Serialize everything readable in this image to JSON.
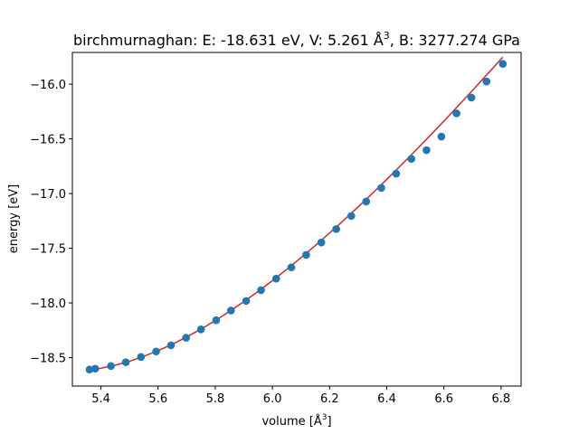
{
  "chart_data": {
    "type": "scatter",
    "title_main": "birchmurnaghan: E: -18.631 eV, V: 5.261 Å",
    "title_sup1": "3",
    "title_mid": ", B: 3277.274 GPa",
    "xlabel_main": "volume [Å",
    "xlabel_sup": "3",
    "xlabel_end": "]",
    "ylabel": "energy [eV]",
    "xlim": [
      5.3,
      6.87
    ],
    "ylim": [
      -18.76,
      -15.71
    ],
    "x_ticks": [
      5.4,
      5.6,
      5.8,
      6.0,
      6.2,
      6.4,
      6.6,
      6.8
    ],
    "x_tick_labels": [
      "5.4",
      "5.6",
      "5.8",
      "6.0",
      "6.2",
      "6.4",
      "6.6",
      "6.8"
    ],
    "y_ticks": [
      -18.5,
      -18.0,
      -17.5,
      -17.0,
      -16.5,
      -16.0
    ],
    "y_tick_labels": [
      "−18.5",
      "−18.0",
      "−17.5",
      "−17.0",
      "−16.5",
      "−16.0"
    ],
    "grid": false,
    "series": [
      {
        "kind": "points",
        "color": "#1f77b4",
        "x": [
          5.36,
          5.38,
          5.435,
          5.487,
          5.54,
          5.593,
          5.645,
          5.698,
          5.75,
          5.803,
          5.855,
          5.908,
          5.96,
          6.013,
          6.066,
          6.118,
          6.171,
          6.223,
          6.276,
          6.328,
          6.381,
          6.433,
          6.486,
          6.539,
          6.591,
          6.644,
          6.696,
          6.749,
          6.806
        ],
        "y": [
          -18.609,
          -18.601,
          -18.577,
          -18.542,
          -18.494,
          -18.444,
          -18.387,
          -18.318,
          -18.242,
          -18.158,
          -18.069,
          -17.982,
          -17.883,
          -17.778,
          -17.675,
          -17.561,
          -17.447,
          -17.325,
          -17.205,
          -17.073,
          -16.948,
          -16.818,
          -16.683,
          -16.603,
          -16.479,
          -16.267,
          -16.123,
          -15.976,
          -15.815
        ]
      },
      {
        "kind": "fit-line",
        "color": "#d62728",
        "x": [
          5.36,
          5.4,
          5.45,
          5.5,
          5.55,
          5.6,
          5.65,
          5.7,
          5.75,
          5.8,
          5.85,
          5.9,
          5.95,
          6.0,
          6.05,
          6.1,
          6.15,
          6.2,
          6.25,
          6.3,
          6.35,
          6.4,
          6.45,
          6.5,
          6.55,
          6.6,
          6.65,
          6.7,
          6.75,
          6.806
        ],
        "y": [
          -18.613,
          -18.597,
          -18.569,
          -18.533,
          -18.488,
          -18.436,
          -18.377,
          -18.311,
          -18.239,
          -18.161,
          -18.077,
          -17.988,
          -17.894,
          -17.796,
          -17.693,
          -17.586,
          -17.475,
          -17.361,
          -17.243,
          -17.122,
          -16.998,
          -16.871,
          -16.741,
          -16.609,
          -16.474,
          -16.337,
          -16.198,
          -16.057,
          -15.914,
          -15.753
        ]
      }
    ]
  }
}
